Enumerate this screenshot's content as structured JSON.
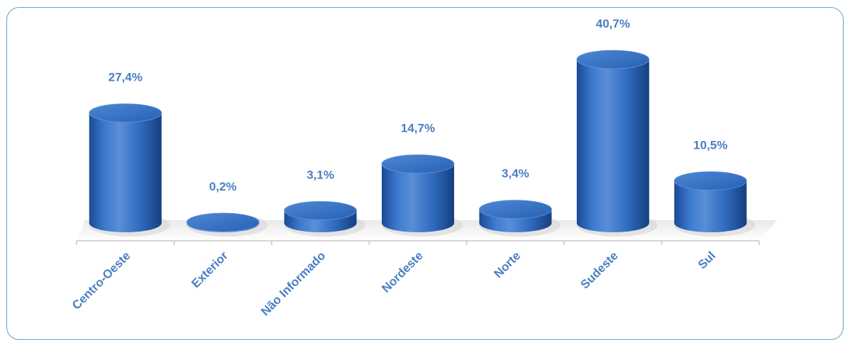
{
  "chart_data": {
    "type": "bar",
    "style": "3d-cylinder",
    "categories": [
      "Centro-Oeste",
      "Exterior",
      "Não Informado",
      "Nordeste",
      "Norte",
      "Sudeste",
      "Sul"
    ],
    "values": [
      27.4,
      0.2,
      3.1,
      14.7,
      3.4,
      40.7,
      10.5
    ],
    "data_labels": [
      "27,4%",
      "0,2%",
      "3,1%",
      "14,7%",
      "3,4%",
      "40,7%",
      "10,5%"
    ],
    "unit": "%",
    "grid": false,
    "legend": "none"
  },
  "colors": {
    "bar_light": "#5b8ed6",
    "bar_mid": "#2f6bbf",
    "bar_dark": "#1a4a94",
    "label": "#4a7fc1",
    "axis": "#c8c8c8",
    "frame_border": "#5fa5c4"
  }
}
